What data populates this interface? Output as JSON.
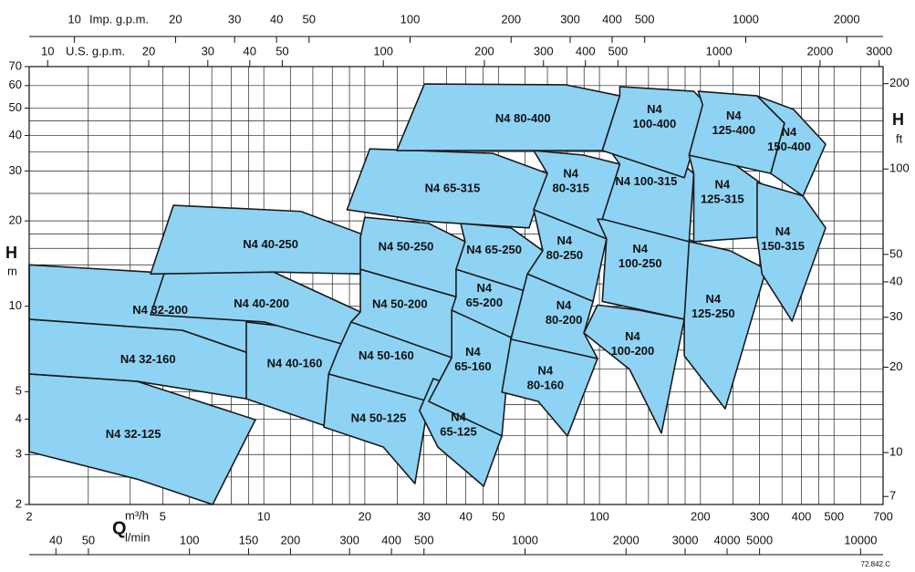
{
  "chart_data": {
    "type": "pump-map",
    "color": "#8fd3f4",
    "edge_color": "#1a1a1a",
    "log_x": true,
    "log_y": true,
    "grid": true,
    "xlabel_symbol": "Q",
    "xlabel": "m³/h",
    "xlim": [
      2,
      700
    ],
    "xticks": [
      2,
      5,
      10,
      20,
      30,
      40,
      50,
      100,
      200,
      300,
      400,
      500,
      700
    ],
    "xgrid": [
      2,
      3,
      4,
      5,
      6,
      7,
      8,
      9,
      10,
      12,
      14,
      16,
      18,
      20,
      25,
      30,
      35,
      40,
      45,
      50,
      60,
      70,
      80,
      90,
      100,
      120,
      140,
      160,
      180,
      200,
      250,
      300,
      350,
      400,
      450,
      500,
      600,
      700
    ],
    "x2label": "l/min",
    "x2lim": [
      33.3,
      11667
    ],
    "x2ticks": [
      40,
      50,
      100,
      150,
      200,
      300,
      400,
      500,
      1000,
      2000,
      3000,
      4000,
      5000,
      10000
    ],
    "x3label": "U.S. g.p.m.",
    "x3lim": [
      8.81,
      3082
    ],
    "x3ticks": [
      10,
      20,
      30,
      40,
      50,
      100,
      200,
      300,
      400,
      500,
      1000,
      2000,
      3000
    ],
    "x4label": "Imp. g.p.m.",
    "x4lim": [
      7.33,
      2566
    ],
    "x4ticks": [
      10,
      20,
      30,
      40,
      50,
      100,
      200,
      300,
      400,
      500,
      1000,
      2000
    ],
    "ylabel": "H",
    "yunit": "m",
    "ylim": [
      2,
      70
    ],
    "yticks": [
      2,
      3,
      4,
      5,
      10,
      20,
      30,
      40,
      50,
      60,
      70
    ],
    "ygrid": [
      2,
      2.5,
      3,
      3.5,
      4,
      4.5,
      5,
      6,
      7,
      8,
      9,
      10,
      12,
      14,
      16,
      18,
      20,
      25,
      30,
      35,
      40,
      45,
      50,
      60,
      70
    ],
    "y2label": "H",
    "y2unit": "ft",
    "y2lim": [
      6.56,
      229.7
    ],
    "y2ticks": [
      7,
      10,
      20,
      30,
      40,
      50,
      100,
      200
    ],
    "footnote": "72.842.C",
    "regions": [
      {
        "label": [
          "N4 32-125"
        ],
        "points": [
          [
            2,
            5.77
          ],
          [
            4.18,
            5.44
          ],
          [
            9.44,
            3.98
          ],
          [
            7.04,
            2.0
          ],
          [
            4.18,
            2.46
          ],
          [
            2,
            3.07
          ]
        ]
      },
      {
        "label": [
          "N4 32-160"
        ],
        "points": [
          [
            2,
            9.0
          ],
          [
            5.72,
            8.23
          ],
          [
            10.05,
            6.54
          ],
          [
            8.87,
            4.72
          ],
          [
            4.18,
            5.44
          ],
          [
            2,
            5.77
          ]
        ]
      },
      {
        "label": [
          "N4 32-200"
        ],
        "points": [
          [
            2,
            14.0
          ],
          [
            5.72,
            13.0
          ],
          [
            10.7,
            9.0
          ],
          [
            10.05,
            6.54
          ],
          [
            5.72,
            8.23
          ],
          [
            2,
            9.0
          ]
        ]
      },
      {
        "label": [
          "N4 40-160"
        ],
        "points": [
          [
            8.87,
            8.8
          ],
          [
            12.9,
            8.36
          ],
          [
            18.2,
            7.21
          ],
          [
            15.6,
            3.75
          ],
          [
            8.87,
            4.72
          ]
        ]
      },
      {
        "label": [
          "N4 40-200"
        ],
        "points": [
          [
            5.21,
            14.6
          ],
          [
            10.7,
            13.2
          ],
          [
            19.4,
            9.55
          ],
          [
            18.2,
            7.21
          ],
          [
            10.05,
            8.8
          ],
          [
            4.6,
            9.34
          ]
        ]
      },
      {
        "label": [
          "N4 40-250"
        ],
        "points": [
          [
            5.38,
            22.7
          ],
          [
            12.9,
            21.6
          ],
          [
            20.0,
            17.8
          ],
          [
            19.4,
            13.0
          ],
          [
            10.7,
            13.2
          ],
          [
            4.6,
            13.0
          ]
        ]
      },
      {
        "label": [
          "N4 50-125"
        ],
        "points": [
          [
            15.6,
            5.77
          ],
          [
            24.1,
            5.36
          ],
          [
            31.0,
            4.62
          ],
          [
            28.2,
            2.37
          ],
          [
            22.7,
            3.19
          ],
          [
            15.1,
            3.75
          ]
        ]
      },
      {
        "label": [
          "N4 50-160"
        ],
        "points": [
          [
            18.2,
            8.8
          ],
          [
            29.1,
            8.05
          ],
          [
            36.3,
            6.59
          ],
          [
            31.0,
            4.62
          ],
          [
            15.6,
            5.77
          ],
          [
            16.6,
            6.94
          ]
        ]
      },
      {
        "label": [
          "N4 50-200"
        ],
        "points": [
          [
            19.4,
            13.5
          ],
          [
            29.1,
            13.0
          ],
          [
            37.4,
            10.8
          ],
          [
            36.3,
            6.59
          ],
          [
            18.2,
            8.8
          ],
          [
            19.4,
            9.55
          ]
        ]
      },
      {
        "label": [
          "N4 50-250"
        ],
        "points": [
          [
            20.0,
            20.6
          ],
          [
            31.0,
            19.6
          ],
          [
            39.8,
            16.9
          ],
          [
            37.4,
            10.8
          ],
          [
            19.4,
            13.5
          ],
          [
            19.4,
            17.5
          ]
        ]
      },
      {
        "label": [
          "N4",
          "65-125"
        ],
        "points": [
          [
            32.0,
            5.56
          ],
          [
            42.4,
            4.9
          ],
          [
            51.2,
            3.49
          ],
          [
            45.2,
            2.32
          ],
          [
            33.0,
            3.19
          ],
          [
            29.1,
            4.29
          ]
        ]
      },
      {
        "label": [
          "N4",
          "65-160"
        ],
        "points": [
          [
            36.3,
            9.69
          ],
          [
            48.1,
            9.0
          ],
          [
            54.5,
            7.76
          ],
          [
            51.2,
            3.49
          ],
          [
            31.0,
            4.62
          ],
          [
            36.3,
            6.59
          ]
        ]
      },
      {
        "label": [
          "N4",
          "65-200"
        ],
        "points": [
          [
            37.4,
            13.5
          ],
          [
            51.2,
            13.0
          ],
          [
            61.7,
            11.2
          ],
          [
            54.5,
            7.76
          ],
          [
            36.3,
            9.69
          ],
          [
            37.4,
            10.8
          ]
        ]
      },
      {
        "label": [
          "N4 65-250"
        ],
        "points": [
          [
            38.6,
            19.6
          ],
          [
            54.5,
            18.9
          ],
          [
            67.8,
            15.7
          ],
          [
            61.7,
            11.2
          ],
          [
            37.4,
            13.5
          ],
          [
            39.8,
            16.9
          ]
        ]
      },
      {
        "label": [
          "N4 65-315"
        ],
        "points": [
          [
            20.7,
            35.9
          ],
          [
            48.1,
            34.6
          ],
          [
            70.0,
            29.4
          ],
          [
            61.7,
            18.9
          ],
          [
            31.0,
            19.9
          ],
          [
            17.7,
            21.9
          ]
        ]
      },
      {
        "label": [
          "N4",
          "80-160"
        ],
        "points": [
          [
            54.5,
            7.65
          ],
          [
            74.5,
            7.21
          ],
          [
            98.7,
            6.54
          ],
          [
            80.3,
            3.49
          ],
          [
            65.7,
            4.62
          ],
          [
            51.2,
            4.98
          ]
        ]
      },
      {
        "label": [
          "N4",
          "80-200"
        ],
        "points": [
          [
            61.0,
            13.0
          ],
          [
            81.9,
            12.6
          ],
          [
            95.7,
            10.4
          ],
          [
            89.9,
            8.05
          ],
          [
            98.7,
            6.54
          ],
          [
            54.5,
            7.65
          ]
        ]
      },
      {
        "label": [
          "N4",
          "80-250"
        ],
        "points": [
          [
            63.7,
            21.9
          ],
          [
            89.9,
            20.3
          ],
          [
            105,
            17.3
          ],
          [
            95.7,
            10.4
          ],
          [
            61.0,
            13.0
          ],
          [
            67.8,
            15.7
          ]
        ]
      },
      {
        "label": [
          "N4",
          "80-315"
        ],
        "points": [
          [
            63.7,
            35.4
          ],
          [
            89.9,
            34.1
          ],
          [
            115,
            31.7
          ],
          [
            105,
            17.3
          ],
          [
            63.7,
            21.9
          ],
          [
            70.0,
            29.4
          ]
        ]
      },
      {
        "label": [
          "N4 80-400"
        ],
        "points": [
          [
            30.1,
            60.8
          ],
          [
            79.3,
            60.4
          ],
          [
            115,
            55.2
          ],
          [
            102,
            35.4
          ],
          [
            61.7,
            35.4
          ],
          [
            24.9,
            35.4
          ]
        ]
      },
      {
        "label": [
          "N4",
          "100-200"
        ],
        "points": [
          [
            98.7,
            10.1
          ],
          [
            131,
            9.69
          ],
          [
            179,
            9.0
          ],
          [
            153,
            3.57
          ],
          [
            123,
            5.99
          ],
          [
            89.9,
            8.05
          ]
        ]
      },
      {
        "label": [
          "N4",
          "100-250"
        ],
        "points": [
          [
            98.7,
            20.3
          ],
          [
            148,
            19.6
          ],
          [
            191,
            16.9
          ],
          [
            179,
            9.0
          ],
          [
            102,
            10.4
          ],
          [
            105,
            17.3
          ]
        ]
      },
      {
        "label": [
          "N4 100-315"
        ],
        "points": [
          [
            105,
            36.8
          ],
          [
            158,
            35.4
          ],
          [
            191,
            29.4
          ],
          [
            185,
            16.9
          ],
          [
            102,
            20.3
          ],
          [
            115,
            31.7
          ]
        ]
      },
      {
        "label": [
          "N4",
          "100-400"
        ],
        "points": [
          [
            115,
            59.5
          ],
          [
            191,
            57.3
          ],
          [
            209,
            51.3
          ],
          [
            179,
            28.4
          ],
          [
            102,
            35.4
          ],
          [
            115,
            55.2
          ]
        ]
      },
      {
        "label": [
          "N4",
          "125-250"
        ],
        "points": [
          [
            185,
            16.9
          ],
          [
            245,
            15.7
          ],
          [
            314,
            13.5
          ],
          [
            237,
            4.35
          ],
          [
            179,
            6.69
          ],
          [
            179,
            9.0
          ]
        ]
      },
      {
        "label": [
          "N4",
          "125-315"
        ],
        "points": [
          [
            185,
            34.1
          ],
          [
            252,
            31.7
          ],
          [
            314,
            26.3
          ],
          [
            295,
            17.5
          ],
          [
            191,
            16.9
          ],
          [
            191,
            29.4
          ]
        ]
      },
      {
        "label": [
          "N4",
          "125-400"
        ],
        "points": [
          [
            197,
            57.3
          ],
          [
            295,
            55.2
          ],
          [
            356,
            44.2
          ],
          [
            324,
            29.4
          ],
          [
            185,
            34.1
          ],
          [
            203,
            51.3
          ]
        ]
      },
      {
        "label": [
          "N4",
          "150-315"
        ],
        "points": [
          [
            295,
            27.3
          ],
          [
            404,
            24.5
          ],
          [
            472,
            18.9
          ],
          [
            375,
            8.87
          ],
          [
            305,
            13.0
          ],
          [
            295,
            17.5
          ]
        ]
      },
      {
        "label": [
          "N4",
          "150-400"
        ],
        "points": [
          [
            295,
            55.2
          ],
          [
            379,
            49.4
          ],
          [
            472,
            37.3
          ],
          [
            404,
            24.5
          ],
          [
            324,
            29.4
          ],
          [
            356,
            44.2
          ]
        ]
      }
    ]
  }
}
